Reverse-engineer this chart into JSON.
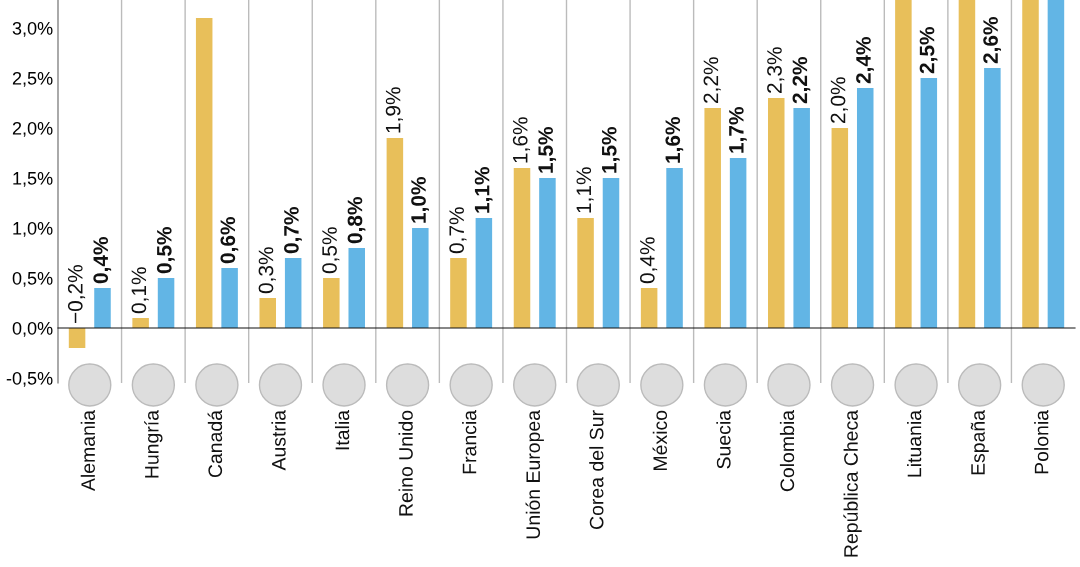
{
  "chart_data": {
    "type": "bar",
    "categories": [
      "Alemania",
      "Hungría",
      "Canadá",
      "Austria",
      "Italia",
      "Reino Unido",
      "Francia",
      "Unión Europea",
      "Corea del Sur",
      "México",
      "Suecia",
      "Colombia",
      "República Checa",
      "Lituania",
      "España",
      "Polonia"
    ],
    "series": [
      {
        "color": "#e8bf5a",
        "values": [
          -0.2,
          0.1,
          3.1,
          0.3,
          0.5,
          1.9,
          0.7,
          1.6,
          1.1,
          0.4,
          2.2,
          2.3,
          2.0,
          3.28,
          3.28,
          3.28
        ],
        "value_labels": [
          "−0,2%",
          "0,1%",
          null,
          "0,3%",
          "0,5%",
          "1,9%",
          "0,7%",
          "1,6%",
          "1,1%",
          "0,4%",
          "2,2%",
          "2,3%",
          "2,0%",
          null,
          null,
          null
        ]
      },
      {
        "color": "#62b5e5",
        "values": [
          0.4,
          0.5,
          0.6,
          0.7,
          0.8,
          1.0,
          1.1,
          1.5,
          1.5,
          1.6,
          1.7,
          2.2,
          2.4,
          2.5,
          2.6,
          3.28
        ],
        "value_labels": [
          "0,4%",
          "0,5%",
          "0,6%",
          "0,7%",
          "0,8%",
          "1,0%",
          "1,1%",
          "1,5%",
          "1,5%",
          "1,6%",
          "1,7%",
          "2,2%",
          "2,4%",
          "2,5%",
          "2,6%",
          null
        ]
      }
    ],
    "ylim": [
      -0.55,
      3.28
    ],
    "yticks": [
      {
        "value": -0.5,
        "label": "-0,5%"
      },
      {
        "value": 0,
        "label": "0,0%"
      },
      {
        "value": 0.5,
        "label": "0,5%"
      },
      {
        "value": 1.0,
        "label": "1,0%"
      },
      {
        "value": 1.5,
        "label": "1,5%"
      },
      {
        "value": 2.0,
        "label": "2,0%"
      },
      {
        "value": 2.5,
        "label": "2,5%"
      },
      {
        "value": 3.0,
        "label": "3,0%"
      }
    ],
    "grid": "x",
    "legend": false
  }
}
